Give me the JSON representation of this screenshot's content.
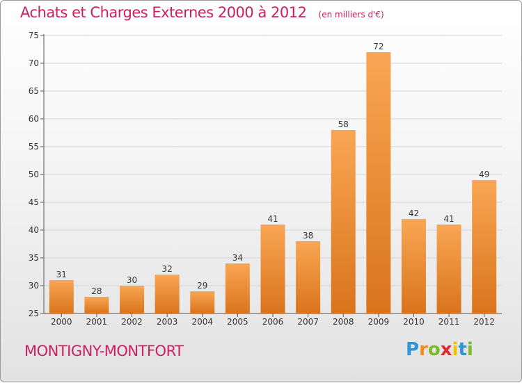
{
  "chart_data": {
    "type": "bar",
    "title": "Achats et Charges Externes 2000 à 2012",
    "subtitle": "(en milliers d'€)",
    "categories": [
      "2000",
      "2001",
      "2002",
      "2003",
      "2004",
      "2005",
      "2006",
      "2007",
      "2008",
      "2009",
      "2010",
      "2011",
      "2012"
    ],
    "values": [
      31,
      28,
      30,
      32,
      29,
      34,
      41,
      38,
      58,
      72,
      42,
      41,
      49
    ],
    "ylim": [
      25,
      75
    ],
    "yticks": [
      25,
      30,
      35,
      40,
      45,
      50,
      55,
      60,
      65,
      70,
      75
    ],
    "grid": "horizontal",
    "legend": "none",
    "bar_color_top": "#f9a654",
    "bar_color_bottom": "#d9741c"
  },
  "location": "MONTIGNY-MONTFORT",
  "logo": {
    "letters": [
      "P",
      "r",
      "o",
      "x",
      "i",
      "t",
      "i"
    ],
    "colors": [
      "#2f93d8",
      "#f28a1c",
      "#7cb82f",
      "#e0262f",
      "#f2c400",
      "#2f93d8",
      "#7cb82f"
    ]
  },
  "colors": {
    "title": "#cc1f5d",
    "grid": "#d4d4d4",
    "axis": "#555555"
  }
}
